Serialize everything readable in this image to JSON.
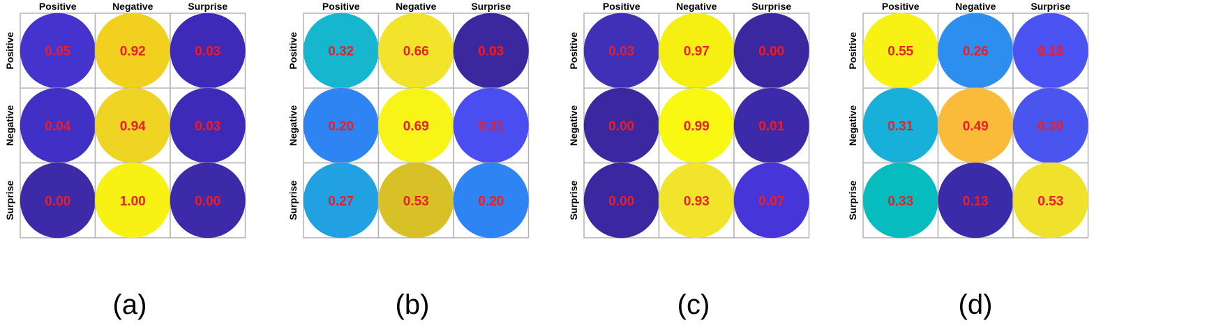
{
  "chart_data": [
    {
      "type": "heatmap",
      "caption": "(a)",
      "xlabels": [
        "Positive",
        "Negative",
        "Surprise"
      ],
      "ylabels": [
        "Positive",
        "Negative",
        "Surprise"
      ],
      "values": [
        [
          0.05,
          0.92,
          0.03
        ],
        [
          0.04,
          0.94,
          0.03
        ],
        [
          0.0,
          1.0,
          0.0
        ]
      ],
      "labels": [
        [
          "0.05",
          "0.92",
          "0.03"
        ],
        [
          "0.04",
          "0.94",
          "0.03"
        ],
        [
          "0.00",
          "1.00",
          "0.00"
        ]
      ],
      "colors": [
        [
          "#4433cc",
          "#f2d020",
          "#3e2ab8"
        ],
        [
          "#4030c6",
          "#f0d424",
          "#3e2ab8"
        ],
        [
          "#3d2aa8",
          "#f7f213",
          "#3d2aa8"
        ]
      ]
    },
    {
      "type": "heatmap",
      "caption": "(b)",
      "xlabels": [
        "Positive",
        "Negative",
        "Surprise"
      ],
      "ylabels": [
        "Positive",
        "Negative",
        "Surprise"
      ],
      "values": [
        [
          0.32,
          0.66,
          0.03
        ],
        [
          0.2,
          0.69,
          0.11
        ],
        [
          0.27,
          0.53,
          0.2
        ]
      ],
      "labels": [
        [
          "0.32",
          "0.66",
          "0.03"
        ],
        [
          "0.20",
          "0.69",
          "0.11"
        ],
        [
          "0.27",
          "0.53",
          "0.20"
        ]
      ],
      "colors": [
        [
          "#16b6cf",
          "#f1e42a",
          "#3b279e"
        ],
        [
          "#2f84f3",
          "#f8f418",
          "#4a4ef0"
        ],
        [
          "#22a1e2",
          "#d7c127",
          "#2f84f3"
        ]
      ]
    },
    {
      "type": "heatmap",
      "caption": "(c)",
      "xlabels": [
        "Positive",
        "Negative",
        "Surprise"
      ],
      "ylabels": [
        "Positive",
        "Negative",
        "Surprise"
      ],
      "values": [
        [
          0.03,
          0.97,
          0.0
        ],
        [
          0.0,
          0.99,
          0.01
        ],
        [
          0.0,
          0.93,
          0.07
        ]
      ],
      "labels": [
        [
          "0.03",
          "0.97",
          "0.00"
        ],
        [
          "0.00",
          "0.99",
          "0.01"
        ],
        [
          "0.00",
          "0.93",
          "0.07"
        ]
      ],
      "colors": [
        [
          "#4030b8",
          "#f5f012",
          "#3b27a0"
        ],
        [
          "#3b27a0",
          "#f8f812",
          "#3d2aaa"
        ],
        [
          "#3b27a0",
          "#f1e42a",
          "#4636da"
        ]
      ]
    },
    {
      "type": "heatmap",
      "caption": "(d)",
      "xlabels": [
        "Positive",
        "Negative",
        "Surprise"
      ],
      "ylabels": [
        "Positive",
        "Negative",
        "Surprise"
      ],
      "values": [
        [
          0.55,
          0.26,
          0.18
        ],
        [
          0.31,
          0.49,
          0.2
        ],
        [
          0.33,
          0.13,
          0.53
        ]
      ],
      "labels": [
        [
          "0.55",
          "0.26",
          "0.18"
        ],
        [
          "0.31",
          "0.49",
          "0.20"
        ],
        [
          "0.33",
          "0.13",
          "0.53"
        ]
      ],
      "colors": [
        [
          "#f7f214",
          "#2e8ef0",
          "#4b53f2"
        ],
        [
          "#18b0d8",
          "#fbbb3a",
          "#4a55f0"
        ],
        [
          "#06bcbf",
          "#3a2ba8",
          "#f0e22c"
        ]
      ]
    }
  ],
  "style": {
    "value_color": "#ee1d23",
    "grid_color": "#b3b3b3",
    "label_color": "#000000"
  }
}
